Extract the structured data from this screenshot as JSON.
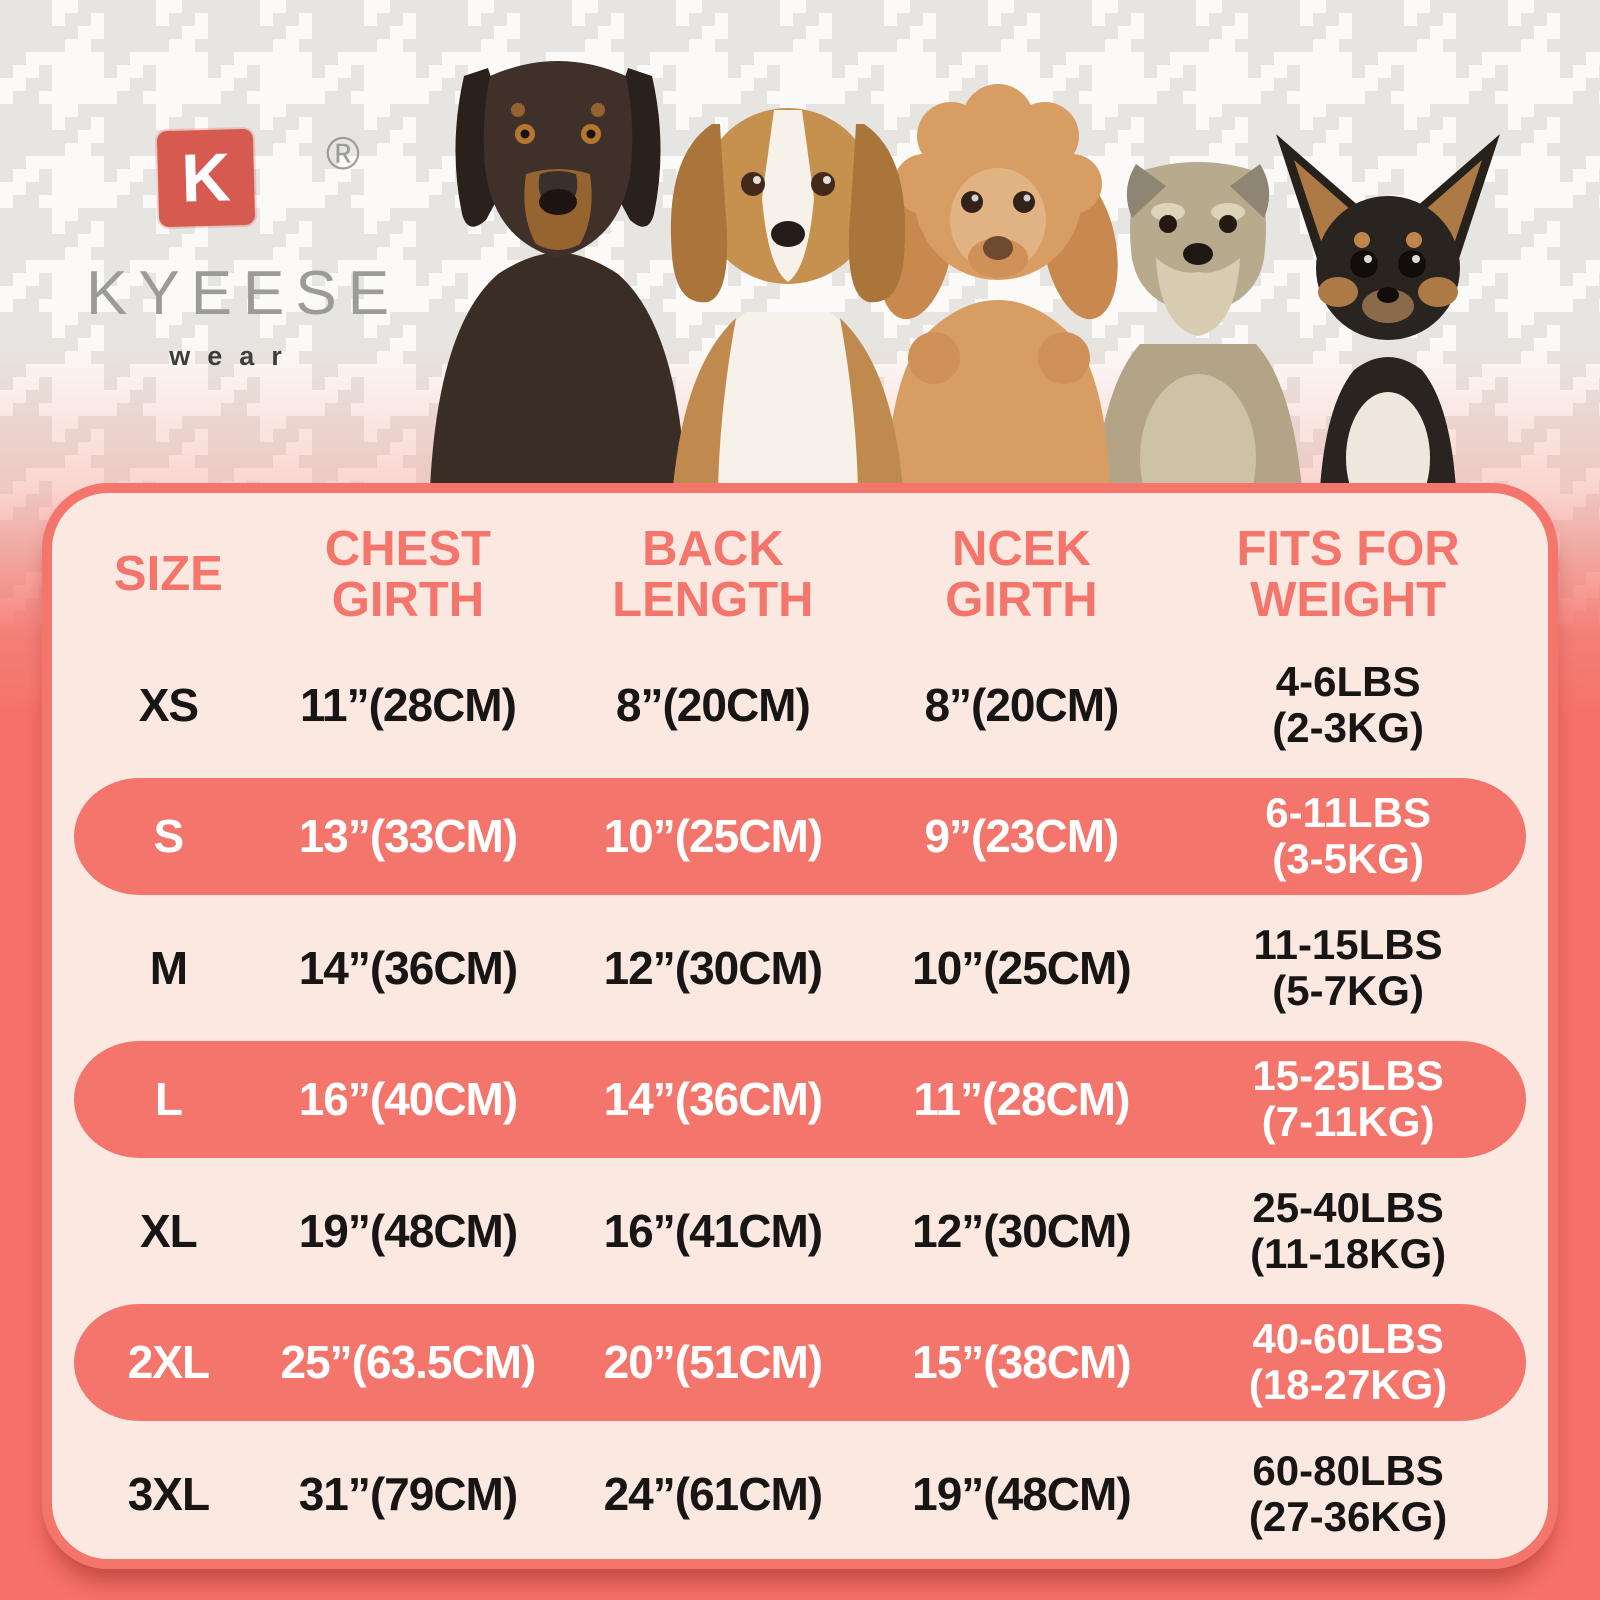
{
  "brand": {
    "logo_letter": "K",
    "registered_mark": "®",
    "name": "KYEESE",
    "subtitle": "wear"
  },
  "hero": {
    "dogs": [
      "doberman",
      "beagle",
      "poodle",
      "schnauzer",
      "chihuahua"
    ]
  },
  "colors": {
    "accent_coral": "#f4756b",
    "outer_background": "#f67168",
    "panel_background": "#fbe9e1",
    "highlight_row": "#f4756b",
    "highlight_text": "#ffffff",
    "header_text": "#f4756b",
    "body_text": "#171614",
    "logo_red": "#d75a50",
    "logo_gray": "#9b9b99",
    "pattern_gray": "#e7e5e1"
  },
  "size_chart": {
    "columns": [
      {
        "lines": [
          "SIZE"
        ]
      },
      {
        "lines": [
          "CHEST",
          "GIRTH"
        ]
      },
      {
        "lines": [
          "BACK",
          "LENGTH"
        ]
      },
      {
        "lines": [
          "NCEK",
          "GIRTH"
        ]
      },
      {
        "lines": [
          "FITS FOR",
          "WEIGHT"
        ]
      }
    ],
    "rows": [
      {
        "size": "XS",
        "chest": "11”(28CM)",
        "back": "8”(20CM)",
        "neck": "8”(20CM)",
        "weight": [
          "4-6LBS",
          "(2-3KG)"
        ],
        "highlighted": false
      },
      {
        "size": "S",
        "chest": "13”(33CM)",
        "back": "10”(25CM)",
        "neck": "9”(23CM)",
        "weight": [
          "6-11LBS",
          "(3-5KG)"
        ],
        "highlighted": true
      },
      {
        "size": "M",
        "chest": "14”(36CM)",
        "back": "12”(30CM)",
        "neck": "10”(25CM)",
        "weight": [
          "11-15LBS",
          "(5-7KG)"
        ],
        "highlighted": false
      },
      {
        "size": "L",
        "chest": "16”(40CM)",
        "back": "14”(36CM)",
        "neck": "11”(28CM)",
        "weight": [
          "15-25LBS",
          "(7-11KG)"
        ],
        "highlighted": true
      },
      {
        "size": "XL",
        "chest": "19”(48CM)",
        "back": "16”(41CM)",
        "neck": "12”(30CM)",
        "weight": [
          "25-40LBS",
          "(11-18KG)"
        ],
        "highlighted": false
      },
      {
        "size": "2XL",
        "chest": "25”(63.5CM)",
        "back": "20”(51CM)",
        "neck": "15”(38CM)",
        "weight": [
          "40-60LBS",
          "(18-27KG)"
        ],
        "highlighted": true
      },
      {
        "size": "3XL",
        "chest": "31”(79CM)",
        "back": "24”(61CM)",
        "neck": "19”(48CM)",
        "weight": [
          "60-80LBS",
          "(27-36KG)"
        ],
        "highlighted": false
      }
    ]
  }
}
